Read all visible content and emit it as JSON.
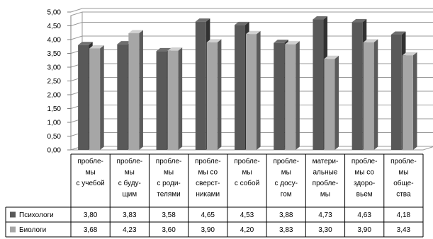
{
  "chart_data": {
    "type": "bar",
    "categories": [
      [
        "пробле-",
        "мы",
        "с учебой"
      ],
      [
        "пробле-",
        "мы",
        "с буду-",
        "щим"
      ],
      [
        "пробле-",
        "мы",
        "с роди-",
        "телями"
      ],
      [
        "пробле-",
        "мы со",
        "сверст-",
        "никами"
      ],
      [
        "пробле-",
        "мы",
        "с собой"
      ],
      [
        "пробле-",
        "мы",
        "с досу-",
        "гом"
      ],
      [
        "матери-",
        "альные",
        "пробле-",
        "мы"
      ],
      [
        "пробле-",
        "мы со",
        "здоро-",
        "вьем"
      ],
      [
        "пробле-",
        "мы",
        "обще-",
        "ства"
      ]
    ],
    "series": [
      {
        "name": "Психологи",
        "values": [
          3.8,
          3.83,
          3.58,
          4.65,
          4.53,
          3.88,
          4.73,
          4.63,
          4.18
        ],
        "labels": [
          "3,80",
          "3,83",
          "3,58",
          "4,65",
          "4,53",
          "3,88",
          "4,73",
          "4,63",
          "4,18"
        ],
        "color": "#595959"
      },
      {
        "name": "Биологи",
        "values": [
          3.68,
          4.23,
          3.6,
          3.9,
          4.2,
          3.83,
          3.3,
          3.9,
          3.43
        ],
        "labels": [
          "3,68",
          "4,23",
          "3,60",
          "3,90",
          "4,20",
          "3,83",
          "3,30",
          "3,90",
          "3,43"
        ],
        "color": "#a6a6a6"
      }
    ],
    "ylim": [
      0,
      5
    ],
    "yticks": [
      "0,00",
      "0,50",
      "1,00",
      "1,50",
      "2,00",
      "2,50",
      "3,00",
      "3,50",
      "4,00",
      "4,50",
      "5,00"
    ],
    "grid": true,
    "style": "3d-clustered-bar-with-data-table",
    "title": "",
    "xlabel": "",
    "ylabel": ""
  }
}
